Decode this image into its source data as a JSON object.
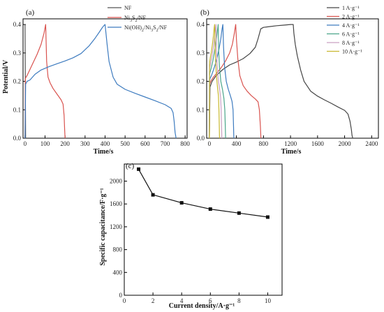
{
  "chart_data": [
    {
      "panel_label": "(a)",
      "type": "line",
      "xlabel": "Time/s",
      "ylabel": "Potential/V",
      "xlim": [
        -10,
        810
      ],
      "ylim": [
        0,
        0.42
      ],
      "xticks": [
        0,
        100,
        200,
        300,
        400,
        500,
        600,
        700,
        800
      ],
      "yticks": [
        0.0,
        0.1,
        0.2,
        0.3,
        0.4
      ],
      "legend_position": "top-right",
      "series": [
        {
          "name": "NF",
          "color": "#555555",
          "x": [
            0,
            1.5,
            3
          ],
          "y": [
            0.4,
            0.2,
            0.0
          ]
        },
        {
          "name": "Ni3S2/NF",
          "color": "#d9534f",
          "x": [
            0,
            2,
            5,
            10,
            20,
            40,
            60,
            80,
            95,
            103,
            108,
            115,
            125,
            140,
            160,
            180,
            190,
            195,
            198,
            200
          ],
          "y": [
            0.0,
            0.21,
            0.215,
            0.22,
            0.235,
            0.265,
            0.295,
            0.33,
            0.37,
            0.4,
            0.27,
            0.215,
            0.195,
            0.175,
            0.155,
            0.135,
            0.12,
            0.08,
            0.03,
            0.0
          ]
        },
        {
          "name": "Ni(OH)2/Ni3S2/NF",
          "color": "#3d7bbf",
          "x": [
            0,
            3,
            10,
            25,
            50,
            80,
            120,
            160,
            200,
            240,
            280,
            320,
            350,
            370,
            385,
            395,
            400,
            410,
            420,
            440,
            460,
            500,
            550,
            600,
            650,
            700,
            730,
            740,
            745,
            750,
            755
          ],
          "y": [
            0.0,
            0.19,
            0.2,
            0.205,
            0.225,
            0.24,
            0.252,
            0.262,
            0.272,
            0.283,
            0.298,
            0.325,
            0.352,
            0.372,
            0.388,
            0.397,
            0.4,
            0.33,
            0.27,
            0.215,
            0.19,
            0.172,
            0.158,
            0.145,
            0.132,
            0.118,
            0.105,
            0.09,
            0.06,
            0.02,
            0.0
          ]
        }
      ]
    },
    {
      "panel_label": "(b)",
      "type": "line",
      "xlabel": "Time/s",
      "ylabel": "",
      "xlim": [
        -40,
        2500
      ],
      "ylim": [
        0,
        0.42
      ],
      "xticks": [
        0,
        400,
        800,
        1200,
        1600,
        2000,
        2400
      ],
      "yticks": [
        0.0,
        0.1,
        0.2,
        0.3,
        0.4
      ],
      "legend_position": "top-right",
      "series": [
        {
          "name": "1 A·g⁻¹",
          "color": "#444444",
          "x": [
            0,
            10,
            40,
            100,
            200,
            300,
            400,
            500,
            600,
            680,
            720,
            760,
            800,
            900,
            1000,
            1100,
            1200,
            1240,
            1250,
            1270,
            1300,
            1350,
            1400,
            1500,
            1600,
            1700,
            1800,
            1900,
            2000,
            2050,
            2080,
            2100,
            2110,
            2120
          ],
          "y": [
            0.0,
            0.18,
            0.2,
            0.22,
            0.242,
            0.258,
            0.268,
            0.28,
            0.298,
            0.32,
            0.35,
            0.385,
            0.39,
            0.393,
            0.396,
            0.398,
            0.4,
            0.4,
            0.37,
            0.33,
            0.29,
            0.24,
            0.2,
            0.165,
            0.148,
            0.135,
            0.123,
            0.11,
            0.098,
            0.085,
            0.06,
            0.03,
            0.01,
            0.0
          ]
        },
        {
          "name": "2 A·g⁻¹",
          "color": "#d9534f",
          "x": [
            0,
            5,
            20,
            60,
            120,
            180,
            240,
            300,
            340,
            370,
            385,
            390,
            400,
            420,
            450,
            500,
            560,
            620,
            680,
            720,
            740,
            755,
            762
          ],
          "y": [
            0.0,
            0.19,
            0.2,
            0.215,
            0.232,
            0.25,
            0.272,
            0.3,
            0.33,
            0.37,
            0.395,
            0.4,
            0.35,
            0.28,
            0.22,
            0.185,
            0.165,
            0.15,
            0.138,
            0.128,
            0.1,
            0.04,
            0.0
          ]
        },
        {
          "name": "4 A·g⁻¹",
          "color": "#3d7bbf",
          "x": [
            0,
            3,
            10,
            30,
            60,
            100,
            140,
            170,
            185,
            195,
            200,
            210,
            225,
            250,
            280,
            310,
            335,
            350,
            358,
            362
          ],
          "y": [
            0.0,
            0.2,
            0.21,
            0.22,
            0.24,
            0.27,
            0.31,
            0.35,
            0.38,
            0.395,
            0.4,
            0.32,
            0.25,
            0.2,
            0.172,
            0.15,
            0.13,
            0.1,
            0.04,
            0.0
          ]
        },
        {
          "name": "6 A·g⁻¹",
          "color": "#4aa58a",
          "x": [
            0,
            2,
            8,
            25,
            50,
            80,
            105,
            122,
            130,
            138,
            150,
            170,
            195,
            215,
            228,
            236,
            240
          ],
          "y": [
            0.0,
            0.22,
            0.23,
            0.245,
            0.27,
            0.31,
            0.35,
            0.385,
            0.4,
            0.31,
            0.25,
            0.2,
            0.17,
            0.14,
            0.1,
            0.04,
            0.0
          ]
        },
        {
          "name": "8 A·g⁻¹",
          "color": "#c9a0c2",
          "x": [
            0,
            2,
            6,
            20,
            40,
            60,
            80,
            92,
            98,
            104,
            115,
            130,
            150,
            165,
            175,
            181,
            184
          ],
          "y": [
            0.0,
            0.24,
            0.25,
            0.265,
            0.29,
            0.32,
            0.36,
            0.39,
            0.4,
            0.32,
            0.26,
            0.21,
            0.175,
            0.145,
            0.1,
            0.04,
            0.0
          ]
        },
        {
          "name": "10 A·g⁻¹",
          "color": "#c8b830",
          "x": [
            0,
            2,
            5,
            15,
            30,
            45,
            60,
            72,
            78,
            84,
            92,
            105,
            120,
            133,
            142,
            147,
            150
          ],
          "y": [
            0.0,
            0.26,
            0.27,
            0.285,
            0.305,
            0.33,
            0.36,
            0.39,
            0.4,
            0.33,
            0.27,
            0.22,
            0.18,
            0.15,
            0.1,
            0.04,
            0.0
          ]
        }
      ]
    },
    {
      "panel_label": "(c)",
      "type": "line",
      "xlabel": "Current density/A·g⁻¹",
      "ylabel": "Specific capacitance/F·g⁻¹",
      "xlim": [
        0,
        11
      ],
      "ylim": [
        0,
        2300
      ],
      "xticks": [
        0,
        2,
        4,
        6,
        8,
        10
      ],
      "yticks": [
        0,
        400,
        800,
        1200,
        1600,
        2000
      ],
      "series": [
        {
          "color": "#111111",
          "marker": "square",
          "x": [
            1,
            2,
            4,
            6,
            8,
            10
          ],
          "y": [
            2210,
            1760,
            1620,
            1510,
            1440,
            1370
          ]
        }
      ]
    }
  ]
}
